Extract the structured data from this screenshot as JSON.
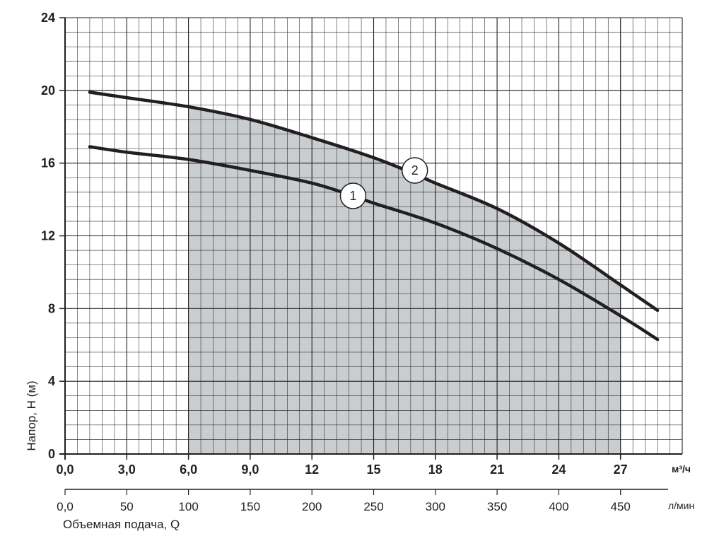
{
  "chart_data": {
    "type": "line",
    "title": "",
    "ylabel": "Напор, H (м)",
    "xlabel": "Объемная подача, Q",
    "xunit_primary": "м³/ч",
    "xunit_secondary": "л/мин",
    "xlim": [
      0,
      30
    ],
    "ylim": [
      0,
      24
    ],
    "grid": true,
    "x_ticks_primary": [
      "0,0",
      "3,0",
      "6,0",
      "9,0",
      "12",
      "15",
      "18",
      "21",
      "24",
      "27"
    ],
    "x_ticks_secondary": [
      "0,0",
      "50",
      "100",
      "150",
      "200",
      "250",
      "300",
      "350",
      "400",
      "450"
    ],
    "y_ticks": [
      "0",
      "4",
      "8",
      "12",
      "16",
      "20",
      "24"
    ],
    "working_range": {
      "x": [
        6,
        27
      ]
    },
    "series": [
      {
        "name": "1",
        "x": [
          1.2,
          3,
          6,
          9,
          12,
          14,
          15,
          18,
          21,
          24,
          27,
          28.8
        ],
        "y": [
          16.9,
          16.6,
          16.2,
          15.6,
          14.9,
          14.2,
          13.8,
          12.7,
          11.3,
          9.6,
          7.6,
          6.3
        ]
      },
      {
        "name": "2",
        "x": [
          1.2,
          3,
          6,
          9,
          12,
          15,
          17,
          18,
          21,
          24,
          27,
          28.8
        ],
        "y": [
          19.9,
          19.6,
          19.1,
          18.4,
          17.4,
          16.3,
          15.4,
          14.9,
          13.5,
          11.6,
          9.3,
          7.9
        ]
      }
    ],
    "colors": {
      "line": "#231f20",
      "shade": "#c9cdd0",
      "grid": "#231f20"
    }
  }
}
